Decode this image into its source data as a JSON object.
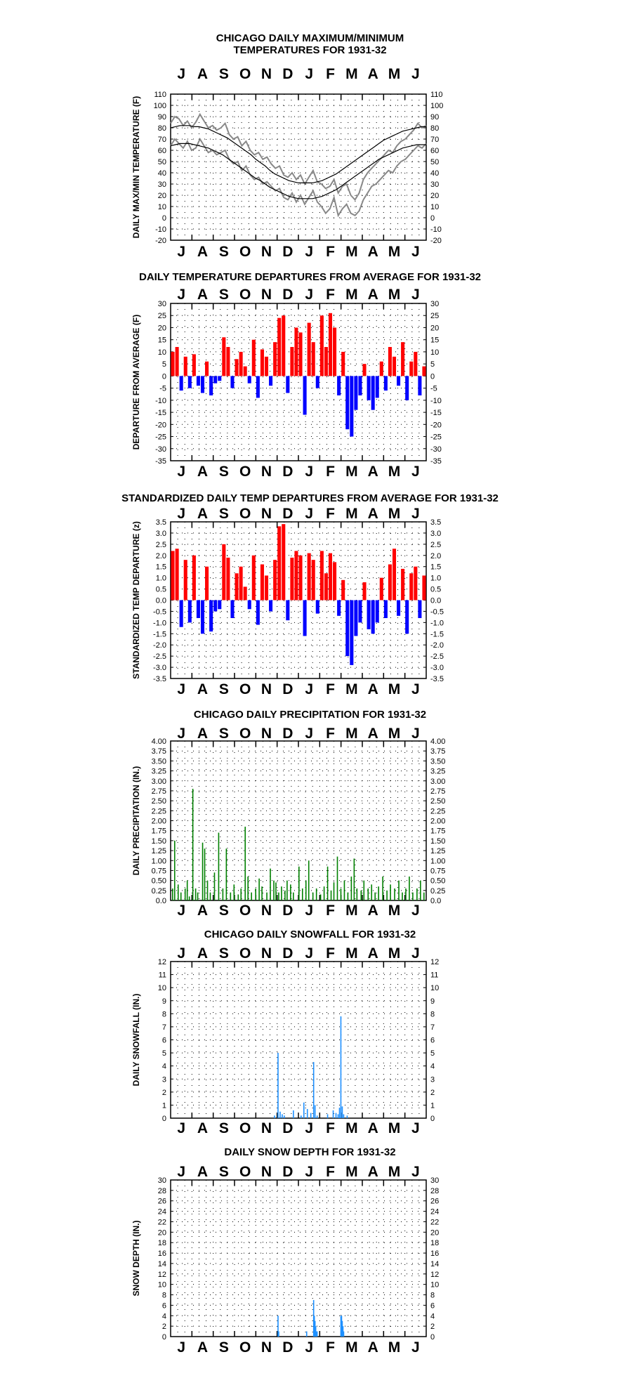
{
  "chart_data": [
    {
      "type": "line",
      "title_lines": [
        "CHICAGO DAILY MAXIMUM/MINIMUM",
        "TEMPERATURES FOR 1931-32"
      ],
      "ylabel": "DAILY MAX/MIN TEMPERATURE (F)",
      "months": [
        "J",
        "A",
        "S",
        "O",
        "N",
        "D",
        "J",
        "F",
        "M",
        "A",
        "M",
        "J"
      ],
      "ylim": [
        -20,
        110
      ],
      "yticks": [
        "110",
        "100",
        "90",
        "80",
        "70",
        "60",
        "50",
        "40",
        "30",
        "20",
        "10",
        "0",
        "-10",
        "-20"
      ],
      "grid": true,
      "x_unit": "week (starting July 1931)",
      "series": [
        {
          "key": "observed_max",
          "color": "#888888",
          "values": [
            84,
            90,
            88,
            82,
            86,
            80,
            85,
            92,
            86,
            80,
            82,
            78,
            80,
            84,
            74,
            70,
            72,
            64,
            68,
            60,
            56,
            58,
            52,
            54,
            48,
            44,
            46,
            38,
            36,
            40,
            34,
            38,
            30,
            36,
            42,
            32,
            30,
            26,
            28,
            34,
            22,
            28,
            30,
            20,
            16,
            22,
            34,
            40,
            44,
            48,
            52,
            56,
            60,
            58,
            64,
            68,
            70,
            74,
            78,
            84,
            80,
            82
          ]
        },
        {
          "key": "observed_min",
          "color": "#888888",
          "values": [
            64,
            70,
            66,
            62,
            68,
            60,
            62,
            70,
            64,
            58,
            60,
            56,
            58,
            60,
            52,
            48,
            50,
            42,
            46,
            38,
            34,
            36,
            30,
            32,
            28,
            24,
            26,
            18,
            16,
            22,
            14,
            20,
            12,
            18,
            24,
            14,
            10,
            4,
            8,
            18,
            2,
            8,
            12,
            4,
            2,
            6,
            16,
            22,
            28,
            30,
            34,
            38,
            42,
            40,
            46,
            50,
            52,
            56,
            60,
            64,
            62,
            66
          ]
        },
        {
          "key": "normal_max",
          "color": "#000000",
          "values": [
            80,
            81,
            82,
            82,
            82,
            81,
            81,
            80,
            79,
            77,
            75,
            73,
            71,
            68,
            65,
            62,
            59,
            56,
            52,
            49,
            46,
            42,
            39,
            37,
            35,
            33,
            32,
            31,
            31,
            31,
            31,
            32,
            33,
            35,
            37,
            39,
            42,
            45,
            48,
            51,
            54,
            57,
            60,
            63,
            66,
            69,
            71,
            73,
            75,
            77,
            78,
            79,
            80,
            81,
            81
          ]
        },
        {
          "key": "normal_min",
          "color": "#000000",
          "values": [
            64,
            65,
            66,
            66,
            66,
            65,
            64,
            63,
            62,
            60,
            58,
            56,
            53,
            50,
            47,
            44,
            41,
            38,
            35,
            33,
            30,
            27,
            25,
            23,
            21,
            19,
            18,
            17,
            17,
            17,
            17,
            18,
            19,
            21,
            23,
            25,
            28,
            31,
            34,
            37,
            40,
            43,
            46,
            49,
            52,
            54,
            56,
            58,
            60,
            62,
            63,
            64,
            65,
            65,
            65
          ]
        }
      ]
    },
    {
      "type": "bar",
      "title": "DAILY TEMPERATURE DEPARTURES FROM AVERAGE FOR 1931-32",
      "ylabel": "DEPARTURE FROM AVERAGE (F)",
      "months": [
        "J",
        "A",
        "S",
        "O",
        "N",
        "D",
        "J",
        "F",
        "M",
        "A",
        "M",
        "J"
      ],
      "ylim": [
        -35,
        30
      ],
      "yticks": [
        "30",
        "25",
        "20",
        "15",
        "10",
        "5",
        "0",
        "-5",
        "-10",
        "-15",
        "-20",
        "-25",
        "-30",
        "-35"
      ],
      "grid": true,
      "x_unit": "week (starting July 1931)",
      "colors": {
        "positive": "#ff0000",
        "negative": "#0000ff"
      },
      "values": [
        10,
        12,
        -6,
        8,
        -5,
        9,
        -4,
        -7,
        6,
        -8,
        -3,
        -2,
        16,
        12,
        -5,
        7,
        10,
        4,
        -3,
        15,
        -9,
        11,
        8,
        -4,
        14,
        24,
        25,
        -7,
        12,
        20,
        18,
        -16,
        22,
        14,
        -5,
        25,
        12,
        26,
        20,
        -8,
        10,
        -22,
        -25,
        -14,
        -8,
        5,
        -10,
        -14,
        -9,
        6,
        -6,
        12,
        8,
        -4,
        14,
        -10,
        6,
        10,
        -8,
        4
      ]
    },
    {
      "type": "bar",
      "title": "STANDARDIZED DAILY TEMP DEPARTURES FROM AVERAGE FOR 1931-32",
      "ylabel": "STANDARDIZED TEMP DEPARTURE (z)",
      "months": [
        "J",
        "A",
        "S",
        "O",
        "N",
        "D",
        "J",
        "F",
        "M",
        "A",
        "M",
        "J"
      ],
      "ylim": [
        -3.5,
        3.5
      ],
      "yticks": [
        "3.5",
        "3.0",
        "2.5",
        "2.0",
        "1.5",
        "1.0",
        "0.5",
        "0.0",
        "-0.5",
        "-1.0",
        "-1.5",
        "-2.0",
        "-2.5",
        "-3.0",
        "-3.5"
      ],
      "ytick_labels_right": [
        "3.5",
        "3.0",
        "2.5",
        "2.0",
        "1.5",
        "1.0",
        "0.5",
        "0.0",
        "-0.5",
        "-1.0",
        "-1.5",
        "-2.0",
        "-2.5",
        "-3.0",
        "-3.5"
      ],
      "grid": true,
      "x_unit": "week (starting July 1931)",
      "colors": {
        "positive": "#ff0000",
        "negative": "#0000ff"
      },
      "values": [
        2.2,
        2.3,
        -1.2,
        1.8,
        -1.0,
        2.0,
        -0.8,
        -1.5,
        1.5,
        -1.4,
        -0.5,
        -0.4,
        2.5,
        1.9,
        -0.8,
        1.2,
        1.5,
        0.6,
        -0.4,
        2.0,
        -1.1,
        1.6,
        1.1,
        -0.5,
        1.8,
        3.3,
        3.4,
        -0.9,
        1.9,
        2.2,
        2.0,
        -1.6,
        2.1,
        1.8,
        -0.6,
        2.2,
        1.2,
        2.1,
        1.7,
        -0.7,
        0.9,
        -2.5,
        -2.9,
        -1.6,
        -1.0,
        0.8,
        -1.3,
        -1.5,
        -1.0,
        1.0,
        -0.8,
        1.6,
        2.3,
        -0.7,
        1.4,
        -1.5,
        1.2,
        1.5,
        -0.8,
        1.1
      ]
    },
    {
      "type": "bar",
      "title": "CHICAGO DAILY PRECIPITATION FOR 1931-32",
      "ylabel": "DAILY PRECIPITATION (IN.)",
      "months": [
        "J",
        "A",
        "S",
        "O",
        "N",
        "D",
        "J",
        "F",
        "M",
        "A",
        "M",
        "J"
      ],
      "ylim": [
        0,
        4.0
      ],
      "yticks": [
        "4.00",
        "3.75",
        "3.50",
        "3.25",
        "3.00",
        "2.75",
        "2.50",
        "2.25",
        "2.00",
        "1.75",
        "1.50",
        "1.25",
        "1.00",
        "0.75",
        "0.50",
        "0.25",
        "0.0"
      ],
      "ytick_labels_right": [
        "4.00",
        "3.75",
        "3.50",
        "3.25",
        "3.00",
        "2.75",
        "2.50",
        "2.25",
        "2.00",
        "1.75",
        "1.50",
        "1.25",
        "1.00",
        "0.75",
        "0.50",
        "0.25",
        "0.0"
      ],
      "grid": true,
      "x_unit": "day (starting 1 July 1931)",
      "color": "#008000",
      "bars": [
        [
          2,
          0.3
        ],
        [
          5,
          1.5
        ],
        [
          10,
          0.4
        ],
        [
          14,
          0.2
        ],
        [
          20,
          0.3
        ],
        [
          23,
          0.5
        ],
        [
          26,
          0.1
        ],
        [
          31,
          2.8
        ],
        [
          35,
          0.3
        ],
        [
          38,
          0.2
        ],
        [
          45,
          1.45
        ],
        [
          48,
          1.3
        ],
        [
          52,
          0.5
        ],
        [
          56,
          0.2
        ],
        [
          62,
          0.7
        ],
        [
          68,
          1.7
        ],
        [
          74,
          0.3
        ],
        [
          79,
          1.3
        ],
        [
          85,
          0.2
        ],
        [
          90,
          0.4
        ],
        [
          96,
          0.15
        ],
        [
          100,
          0.3
        ],
        [
          106,
          1.85
        ],
        [
          110,
          0.6
        ],
        [
          115,
          0.2
        ],
        [
          121,
          0.3
        ],
        [
          126,
          0.55
        ],
        [
          130,
          0.35
        ],
        [
          137,
          0.2
        ],
        [
          142,
          0.8
        ],
        [
          147,
          0.5
        ],
        [
          150,
          0.45
        ],
        [
          154,
          0.2
        ],
        [
          158,
          0.35
        ],
        [
          163,
          0.25
        ],
        [
          166,
          0.5
        ],
        [
          171,
          0.4
        ],
        [
          175,
          0.2
        ],
        [
          183,
          0.85
        ],
        [
          188,
          0.3
        ],
        [
          193,
          0.5
        ],
        [
          197,
          1.0
        ],
        [
          203,
          0.2
        ],
        [
          208,
          0.3
        ],
        [
          214,
          0.15
        ],
        [
          219,
          0.35
        ],
        [
          224,
          0.85
        ],
        [
          229,
          0.25
        ],
        [
          233,
          0.45
        ],
        [
          238,
          1.1
        ],
        [
          243,
          0.3
        ],
        [
          248,
          0.5
        ],
        [
          253,
          0.2
        ],
        [
          258,
          0.6
        ],
        [
          262,
          1.05
        ],
        [
          266,
          0.3
        ],
        [
          272,
          0.25
        ],
        [
          276,
          0.5
        ],
        [
          282,
          0.3
        ],
        [
          287,
          0.4
        ],
        [
          292,
          0.2
        ],
        [
          297,
          0.35
        ],
        [
          303,
          0.6
        ],
        [
          309,
          0.25
        ],
        [
          314,
          0.4
        ],
        [
          320,
          0.3
        ],
        [
          326,
          0.5
        ],
        [
          331,
          0.2
        ],
        [
          336,
          0.3
        ],
        [
          341,
          0.6
        ],
        [
          346,
          0.2
        ],
        [
          352,
          0.3
        ],
        [
          357,
          0.5
        ],
        [
          362,
          0.2
        ]
      ]
    },
    {
      "type": "bar",
      "title": "CHICAGO DAILY SNOWFALL FOR 1931-32",
      "ylabel": "DAILY SNOWFALL (IN.)",
      "months": [
        "J",
        "A",
        "S",
        "O",
        "N",
        "D",
        "J",
        "F",
        "M",
        "A",
        "M",
        "J"
      ],
      "ylim": [
        0,
        12
      ],
      "yticks": [
        "12",
        "11",
        "10",
        "9",
        "8",
        "7",
        "6",
        "5",
        "4",
        "3",
        "2",
        "1",
        "0"
      ],
      "grid": true,
      "x_unit": "day (starting 1 July 1931)",
      "color": "#1e90ff",
      "bars": [
        [
          148,
          0.2
        ],
        [
          153,
          5.0
        ],
        [
          156,
          0.5
        ],
        [
          159,
          0.3
        ],
        [
          162,
          0.2
        ],
        [
          175,
          0.6
        ],
        [
          186,
          0.2
        ],
        [
          190,
          1.2
        ],
        [
          195,
          0.7
        ],
        [
          200,
          0.4
        ],
        [
          204,
          4.3
        ],
        [
          206,
          1.0
        ],
        [
          209,
          0.2
        ],
        [
          224,
          0.3
        ],
        [
          232,
          0.6
        ],
        [
          236,
          0.4
        ],
        [
          239,
          0.3
        ],
        [
          241,
          0.8
        ],
        [
          243,
          7.8
        ],
        [
          245,
          0.9
        ],
        [
          247,
          0.3
        ],
        [
          252,
          0.2
        ]
      ]
    },
    {
      "type": "area",
      "title": "DAILY SNOW DEPTH FOR 1931-32",
      "ylabel": "SNOW DEPTH (IN.)",
      "months": [
        "J",
        "A",
        "S",
        "O",
        "N",
        "D",
        "J",
        "F",
        "M",
        "A",
        "M",
        "J"
      ],
      "ylim": [
        0,
        30
      ],
      "yticks": [
        "30",
        "28",
        "26",
        "24",
        "22",
        "20",
        "18",
        "16",
        "14",
        "12",
        "10",
        "8",
        "6",
        "4",
        "2",
        "0"
      ],
      "grid": true,
      "x_unit": "day (starting 1 July 1931)",
      "color": "#1e90ff",
      "bars": [
        [
          153,
          4
        ],
        [
          154,
          1
        ],
        [
          194,
          1
        ],
        [
          204,
          7
        ],
        [
          205,
          4
        ],
        [
          206,
          3
        ],
        [
          207,
          2
        ],
        [
          208,
          1
        ],
        [
          209,
          1
        ],
        [
          243,
          4
        ],
        [
          244,
          4
        ],
        [
          245,
          3
        ],
        [
          246,
          2
        ],
        [
          247,
          1
        ]
      ]
    }
  ]
}
